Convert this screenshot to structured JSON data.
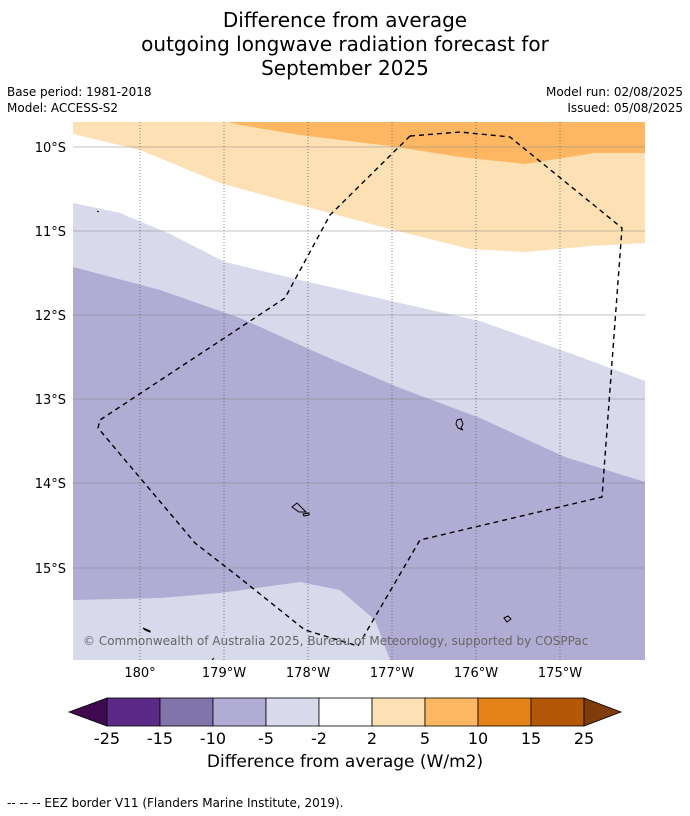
{
  "title": {
    "line1": "Difference from average",
    "line2": "outgoing longwave radiation forecast for",
    "line3": "September 2025"
  },
  "meta": {
    "base_period": "Base period: 1981-2018",
    "model": "Model: ACCESS-S2",
    "model_run": "Model run: 02/08/2025",
    "issued": "Issued: 05/08/2025"
  },
  "map": {
    "lat_ticks": [
      "10°S",
      "11°S",
      "12°S",
      "13°S",
      "14°S",
      "15°S"
    ],
    "lon_ticks": [
      "180°",
      "179°W",
      "178°W",
      "177°W",
      "176°W",
      "175°W"
    ],
    "copyright": "© Commonwealth of Australia 2025, Bureau of Meteorology, supported by COSPPac"
  },
  "colorbar": {
    "ticks": [
      "-25",
      "-15",
      "-10",
      "-5",
      "-2",
      "2",
      "5",
      "10",
      "15",
      "25"
    ],
    "colors": [
      "#3f0a4f",
      "#5b2a86",
      "#8173ac",
      "#b1acd3",
      "#d8d9ea",
      "#ffffff",
      "#fde0b3",
      "#fdb762",
      "#e38217",
      "#b35806",
      "#7f3b08"
    ],
    "label": "Difference from average (W/m2)"
  },
  "footnote": "--  --  -- EEZ border V11 (Flanders Marine Institute, 2019)."
}
